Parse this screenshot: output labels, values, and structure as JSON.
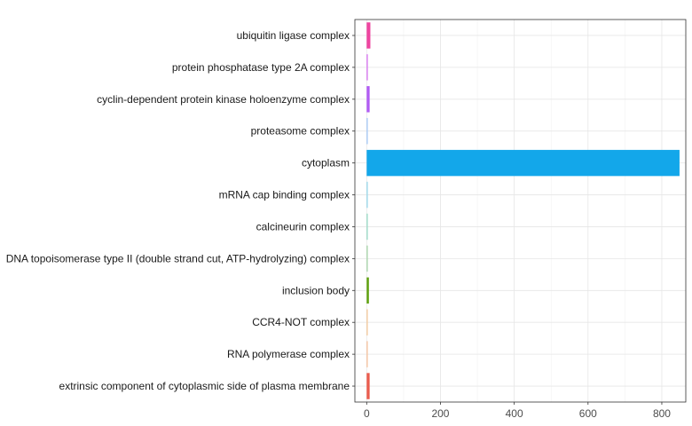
{
  "chart_data": {
    "type": "bar",
    "orientation": "horizontal",
    "categories": [
      "ubiquitin ligase complex",
      "protein phosphatase type 2A complex",
      "cyclin-dependent protein kinase holoenzyme complex",
      "proteasome complex",
      "cytoplasm",
      "mRNA cap binding complex",
      "calcineurin complex",
      "DNA topoisomerase type II (double strand cut, ATP-hydrolyzing) complex",
      "inclusion body",
      "CCR4-NOT complex",
      "RNA polymerase complex",
      "extrinsic component of cytoplasmic side of plasma membrane"
    ],
    "values": [
      10,
      3,
      8,
      2,
      848,
      2,
      2,
      2,
      6,
      2,
      2,
      8
    ],
    "colors": [
      "#EE45A0",
      "#D56BF2",
      "#B15CF4",
      "#9EC5F7",
      "#13A7EA",
      "#8FD6EA",
      "#8ED8C0",
      "#9ED2A0",
      "#5EA10E",
      "#F5C592",
      "#F7BE95",
      "#EA5C4E"
    ],
    "title": "",
    "xlabel": "",
    "ylabel": "",
    "xlim": [
      -32,
      865
    ],
    "xticks": [
      0,
      200,
      400,
      600,
      800
    ],
    "grid": true,
    "legend": "none"
  }
}
